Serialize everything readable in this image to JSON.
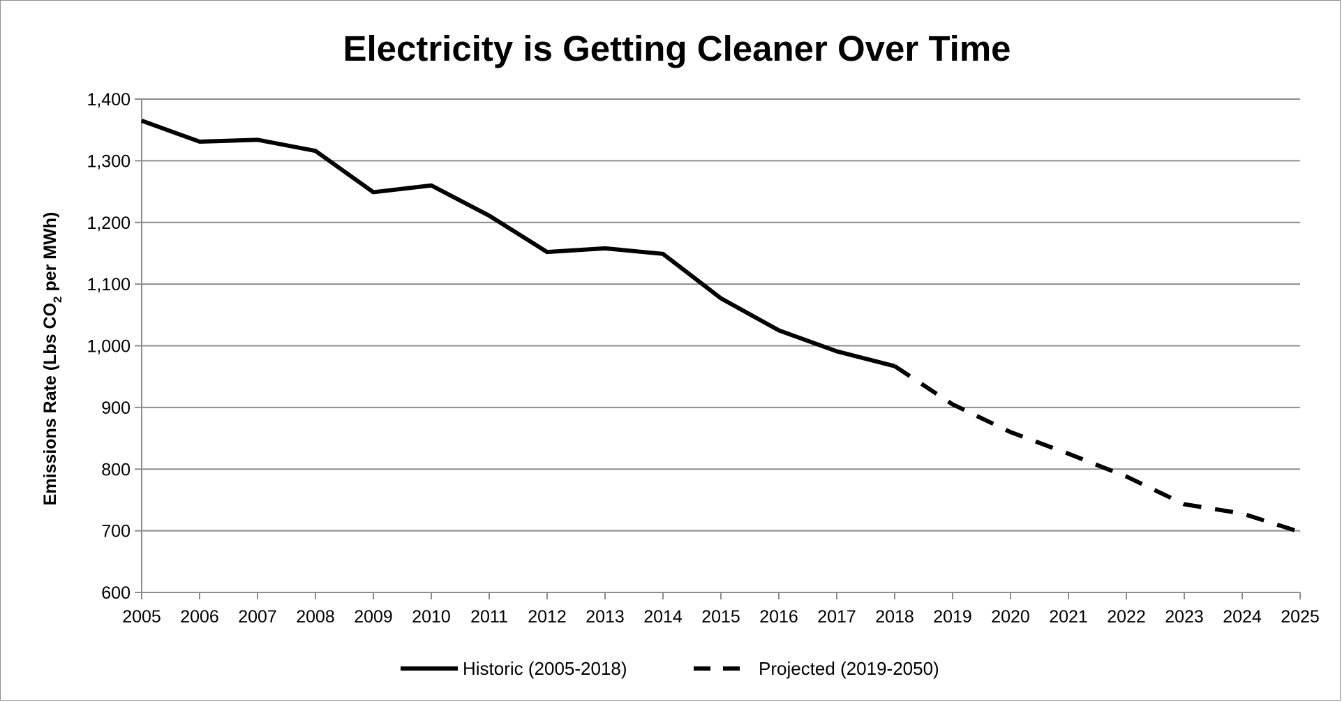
{
  "chart_data": {
    "type": "line",
    "title": "Electricity is Getting Cleaner Over Time",
    "ylabel_prefix": "Emissions Rate (Lbs CO",
    "ylabel_sub": "2",
    "ylabel_suffix": " per MWh)",
    "xlabel": "",
    "ylim": [
      600,
      1400
    ],
    "y_ticks": [
      "600",
      "700",
      "800",
      "900",
      "1,000",
      "1,100",
      "1,200",
      "1,300",
      "1,400"
    ],
    "categories": [
      "2005",
      "2006",
      "2007",
      "2008",
      "2009",
      "2010",
      "2011",
      "2012",
      "2013",
      "2014",
      "2015",
      "2016",
      "2017",
      "2018",
      "2019",
      "2020",
      "2021",
      "2022",
      "2023",
      "2024",
      "2025"
    ],
    "grid": true,
    "legend_position": "bottom",
    "series": [
      {
        "name": "Historic (2005-2018)",
        "style": "solid",
        "color": "#000000",
        "x": [
          "2005",
          "2006",
          "2007",
          "2008",
          "2009",
          "2010",
          "2011",
          "2012",
          "2013",
          "2014",
          "2015",
          "2016",
          "2017",
          "2018"
        ],
        "values": [
          1365,
          1331,
          1334,
          1316,
          1249,
          1260,
          1211,
          1152,
          1158,
          1149,
          1077,
          1025,
          991,
          967
        ]
      },
      {
        "name": "Projected (2019-2050)",
        "style": "dashed",
        "color": "#000000",
        "x": [
          "2018",
          "2019",
          "2020",
          "2021",
          "2022",
          "2023",
          "2024",
          "2025"
        ],
        "values": [
          967,
          905,
          860,
          825,
          788,
          743,
          728,
          698
        ]
      }
    ]
  }
}
